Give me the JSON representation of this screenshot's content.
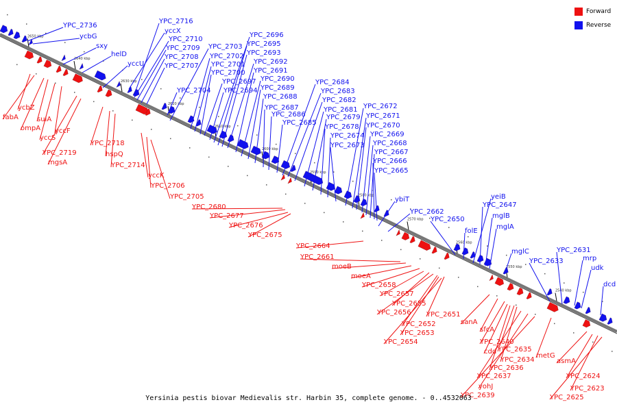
{
  "caption": "Yersinia pestis biovar Medievalis str. Harbin 35, complete genome. - 0..4532063",
  "legend": [
    {
      "label": "Forward",
      "color": "#ee1111"
    },
    {
      "label": "Reverse",
      "color": "#1111ee"
    }
  ],
  "ticks": [
    "2650 kbp",
    "2640 kbp",
    "2630 kbp",
    "2620 kbp",
    "2610 kbp",
    "2600 kbp",
    "2590 kbp",
    "2580 kbp",
    "2570 kbp",
    "2560 kbp",
    "2550 kbp",
    "2540 kbp"
  ],
  "reverse_labels": [
    "YPC_2736",
    "ycbG",
    "sxy",
    "helD",
    "yccU",
    "yccX",
    "YPC_2716",
    "YPC_2710",
    "YPC_2709",
    "YPC_2708",
    "YPC_2707",
    "YPC_2704",
    "YPC_2703",
    "YPC_2702",
    "YPC_2701",
    "YPC_2700",
    "YPC_2697",
    "YPC_2694",
    "YPC_2696",
    "YPC_2695",
    "YPC_2693",
    "YPC_2692",
    "YPC_2691",
    "YPC_2690",
    "YPC_2689",
    "YPC_2688",
    "YPC_2687",
    "YPC_2686",
    "YPC_2685",
    "YPC_2684",
    "YPC_2683",
    "YPC_2682",
    "YPC_2681",
    "YPC_2679",
    "YPC_2678",
    "YPC_2674",
    "YPC_2673",
    "YPC_2672",
    "YPC_2671",
    "YPC_2670",
    "YPC_2669",
    "YPC_2668",
    "YPC_2667",
    "YPC_2666",
    "YPC_2665",
    "ybiT",
    "YPC_2662",
    "YPC_2650",
    "folE",
    "yeiB",
    "YPC_2647",
    "mglB",
    "mglA",
    "mglC",
    "YPC_2633",
    "YPC_2631",
    "mrp",
    "udk",
    "dcd"
  ],
  "forward_labels": [
    "ycbZ",
    "fabA",
    "ompA",
    "sulA",
    "yccS",
    "yccF",
    "YPC_2719",
    "YPC_2718",
    "mgsA",
    "hspQ",
    "YPC_2714",
    "yccK",
    "YPC_2706",
    "YPC_2705",
    "YPC_2680",
    "YPC_2677",
    "YPC_2676",
    "YPC_2675",
    "YPC_2664",
    "YPC_2661",
    "moeB",
    "moeA",
    "YPC_2658",
    "YPC_2657",
    "YPC_2655",
    "YPC_2656",
    "YPC_2651",
    "YPC_2652",
    "YPC_2653",
    "YPC_2654",
    "sanA",
    "sfcA",
    "YPC_2640",
    "cdd",
    "YPC_2635",
    "YPC_2634",
    "YPC_2636",
    "metG",
    "YPC_2637",
    "yohJ",
    "YPC_2639",
    "asmA",
    "YPC_2624",
    "YPC_2623",
    "YPC_2625"
  ]
}
